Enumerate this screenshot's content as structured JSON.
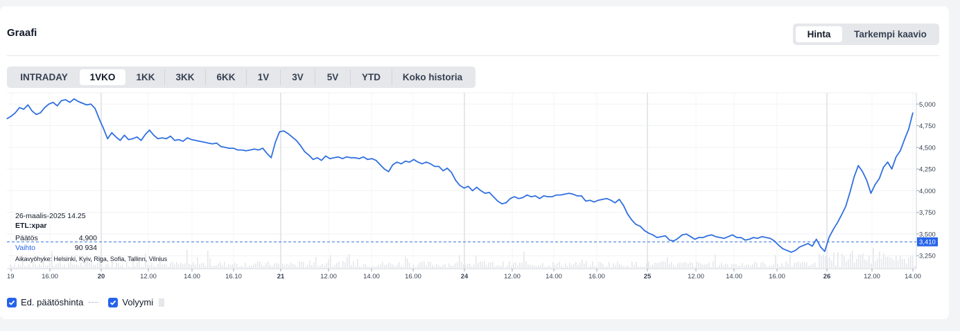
{
  "header": {
    "title": "Graafi"
  },
  "view_toggle": [
    {
      "label": "Hinta",
      "active": true
    },
    {
      "label": "Tarkempi kaavio",
      "active": false
    }
  ],
  "ranges": [
    {
      "label": "INTRADAY",
      "active": false
    },
    {
      "label": "1VKO",
      "active": true
    },
    {
      "label": "1KK",
      "active": false
    },
    {
      "label": "3KK",
      "active": false
    },
    {
      "label": "6KK",
      "active": false
    },
    {
      "label": "1V",
      "active": false
    },
    {
      "label": "3V",
      "active": false
    },
    {
      "label": "5V",
      "active": false
    },
    {
      "label": "YTD",
      "active": false
    },
    {
      "label": "Koko historia",
      "active": false
    }
  ],
  "tooltip": {
    "datetime": "26-maalis-2025 14.25",
    "symbol": "ETL:xpar",
    "close_label": "Päätös",
    "close_value": "4,900",
    "volume_label": "Vaihto",
    "volume_value": "90 934",
    "timezone": "Aikavyöhyke: Helsinki, Kyiv, Riga, Sofia, Tallinn, Vilnius"
  },
  "legend": {
    "prev_close_label": "Ed. päätöshinta",
    "volume_label": "Volyymi"
  },
  "colors": {
    "line": "#2f6fe0",
    "accent": "#2563eb",
    "prev_close": "#2f6fe0",
    "grid": "#eef0f3"
  },
  "chart_data": {
    "type": "line",
    "series": [
      {
        "values": [
          4.83,
          4.86,
          4.9,
          4.96,
          4.94,
          4.99,
          4.92,
          4.88,
          4.9,
          4.96,
          5.0,
          5.02,
          4.98,
          5.04,
          5.05,
          5.02,
          5.06,
          5.03,
          5.01,
          4.99,
          5.0,
          4.95,
          4.83,
          4.72,
          4.6,
          4.67,
          4.62,
          4.58,
          4.64,
          4.59,
          4.6,
          4.62,
          4.58,
          4.65,
          4.7,
          4.64,
          4.6,
          4.61,
          4.6,
          4.63,
          4.58,
          4.59,
          4.57,
          4.61,
          4.59,
          4.58,
          4.57,
          4.56,
          4.55,
          4.54,
          4.55,
          4.51,
          4.5,
          4.49,
          4.49,
          4.47,
          4.47,
          4.46,
          4.47,
          4.48,
          4.47,
          4.49,
          4.43,
          4.38,
          4.56,
          4.68,
          4.69,
          4.66,
          4.62,
          4.58,
          4.52,
          4.45,
          4.41,
          4.36,
          4.38,
          4.35,
          4.4,
          4.37,
          4.38,
          4.39,
          4.37,
          4.39,
          4.38,
          4.38,
          4.37,
          4.39,
          4.36,
          4.37,
          4.35,
          4.3,
          4.25,
          4.22,
          4.3,
          4.33,
          4.31,
          4.34,
          4.33,
          4.36,
          4.33,
          4.31,
          4.33,
          4.31,
          4.28,
          4.28,
          4.23,
          4.26,
          4.21,
          4.12,
          4.06,
          4.03,
          4.05,
          4.0,
          4.04,
          4.0,
          3.97,
          3.98,
          3.93,
          3.88,
          3.85,
          3.86,
          3.91,
          3.93,
          3.91,
          3.92,
          3.95,
          3.93,
          3.94,
          3.91,
          3.94,
          3.93,
          3.93,
          3.95,
          3.95,
          3.96,
          3.97,
          3.96,
          3.94,
          3.94,
          3.88,
          3.89,
          3.87,
          3.89,
          3.9,
          3.91,
          3.89,
          3.86,
          3.9,
          3.83,
          3.73,
          3.66,
          3.61,
          3.59,
          3.54,
          3.51,
          3.49,
          3.46,
          3.47,
          3.48,
          3.43,
          3.42,
          3.45,
          3.49,
          3.5,
          3.47,
          3.44,
          3.46,
          3.46,
          3.48,
          3.49,
          3.47,
          3.46,
          3.45,
          3.47,
          3.49,
          3.46,
          3.46,
          3.43,
          3.44,
          3.46,
          3.45,
          3.47,
          3.46,
          3.45,
          3.42,
          3.37,
          3.33,
          3.31,
          3.29,
          3.31,
          3.35,
          3.37,
          3.39,
          3.36,
          3.44,
          3.35,
          3.3,
          3.46,
          3.55,
          3.63,
          3.72,
          3.82,
          3.98,
          4.16,
          4.29,
          4.22,
          4.12,
          3.97,
          4.07,
          4.14,
          4.27,
          4.33,
          4.25,
          4.39,
          4.46,
          4.59,
          4.71,
          4.9
        ]
      }
    ],
    "prev_close": 3.41,
    "prev_close_label": "3,410",
    "ylim": [
      3.1,
      5.13
    ],
    "y_ticks": [
      {
        "label": "5,000",
        "v": 5.0
      },
      {
        "label": "4,750",
        "v": 4.75
      },
      {
        "label": "4,500",
        "v": 4.5
      },
      {
        "label": "4,250",
        "v": 4.25
      },
      {
        "label": "4,000",
        "v": 4.0
      },
      {
        "label": "3,750",
        "v": 3.75
      },
      {
        "label": "3,500",
        "v": 3.5
      },
      {
        "label": "3,250",
        "v": 3.25
      }
    ],
    "x_ticks": [
      {
        "label": "19",
        "bold": false
      },
      {
        "label": "16.00",
        "bold": false
      },
      {
        "label": "20",
        "bold": true
      },
      {
        "label": "12.00",
        "bold": false
      },
      {
        "label": "14.00",
        "bold": false
      },
      {
        "label": "16.10",
        "bold": false
      },
      {
        "label": "21",
        "bold": true
      },
      {
        "label": "12.00",
        "bold": false
      },
      {
        "label": "14.00",
        "bold": false
      },
      {
        "label": "16.00",
        "bold": false
      },
      {
        "label": "24",
        "bold": true
      },
      {
        "label": "12.00",
        "bold": false
      },
      {
        "label": "14.00",
        "bold": false
      },
      {
        "label": "16.00",
        "bold": false
      },
      {
        "label": "25",
        "bold": true
      },
      {
        "label": "12.00",
        "bold": false
      },
      {
        "label": "14.00",
        "bold": false
      },
      {
        "label": "16.00",
        "bold": false
      },
      {
        "label": "26",
        "bold": true
      },
      {
        "label": "12.00",
        "bold": false
      },
      {
        "label": "14.00",
        "bold": false
      }
    ]
  }
}
